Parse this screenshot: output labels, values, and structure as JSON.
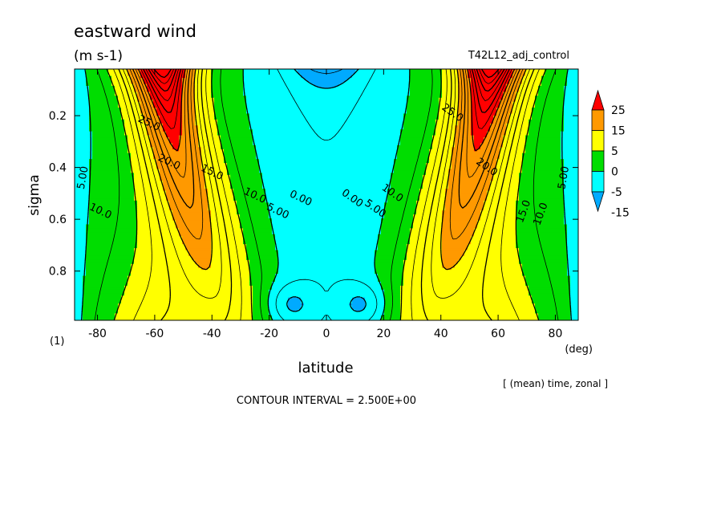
{
  "chart_data": {
    "type": "contour",
    "title": "eastward wind",
    "units": "(m s-1)",
    "experiment": "T42L12_adj_control",
    "xlabel": "latitude",
    "x_unit": "(deg)",
    "ylabel": "sigma",
    "y_axis_note": "(1)",
    "footnote": "[ (mean) time, zonal ]",
    "contour_interval_text": "CONTOUR INTERVAL = 2.500E+00",
    "xlim": [
      -88,
      88
    ],
    "ylim": [
      0.02,
      0.99
    ],
    "y_reversed": true,
    "x_ticks": [
      "-80",
      "-60",
      "-40",
      "-20",
      "0",
      "20",
      "40",
      "60",
      "80"
    ],
    "x_tick_values": [
      -80,
      -60,
      -40,
      -20,
      0,
      20,
      40,
      60,
      80
    ],
    "y_ticks": [
      "0.2",
      "0.4",
      "0.6",
      "0.8"
    ],
    "y_tick_values": [
      0.2,
      0.4,
      0.6,
      0.8
    ],
    "colorbar": {
      "labels": [
        "25",
        "15",
        "5",
        "0",
        "-5",
        "-15"
      ],
      "colors": [
        "#ff0000",
        "#ff9900",
        "#ffff00",
        "#00dd00",
        "#00ffff",
        "#00aaff"
      ]
    },
    "fill_bands": [
      {
        "min": 25,
        "color": "#ff0000"
      },
      {
        "min": 15,
        "max": 25,
        "color": "#ff9900"
      },
      {
        "min": 5,
        "max": 15,
        "color": "#ffff00"
      },
      {
        "min": 0,
        "max": 5,
        "color": "#00dd00"
      },
      {
        "min": -5,
        "max": 0,
        "color": "#00ffff"
      },
      {
        "max": -5,
        "color": "#00aaff"
      }
    ],
    "contour_labels": [
      {
        "text": "25.0",
        "lat": -62,
        "sigma": 0.23
      },
      {
        "text": "20.0",
        "lat": -55,
        "sigma": 0.38
      },
      {
        "text": "15.0",
        "lat": -40,
        "sigma": 0.42
      },
      {
        "text": "10.0",
        "lat": -25,
        "sigma": 0.51
      },
      {
        "text": "5.00",
        "lat": -17,
        "sigma": 0.57
      },
      {
        "text": "0.00",
        "lat": -9,
        "sigma": 0.52
      },
      {
        "text": "10.0",
        "lat": -79,
        "sigma": 0.57
      },
      {
        "text": "5.00",
        "lat": -85,
        "sigma": 0.44
      },
      {
        "text": "0.00",
        "lat": 9,
        "sigma": 0.52
      },
      {
        "text": "5.00",
        "lat": 17,
        "sigma": 0.56
      },
      {
        "text": "10.0",
        "lat": 23,
        "sigma": 0.5
      },
      {
        "text": "25.0",
        "lat": 44,
        "sigma": 0.19
      },
      {
        "text": "20.0",
        "lat": 56,
        "sigma": 0.4
      },
      {
        "text": "15.0",
        "lat": 69,
        "sigma": 0.57
      },
      {
        "text": "10.0",
        "lat": 75,
        "sigma": 0.58
      },
      {
        "text": "5.00",
        "lat": 83,
        "sigma": 0.44
      }
    ]
  }
}
